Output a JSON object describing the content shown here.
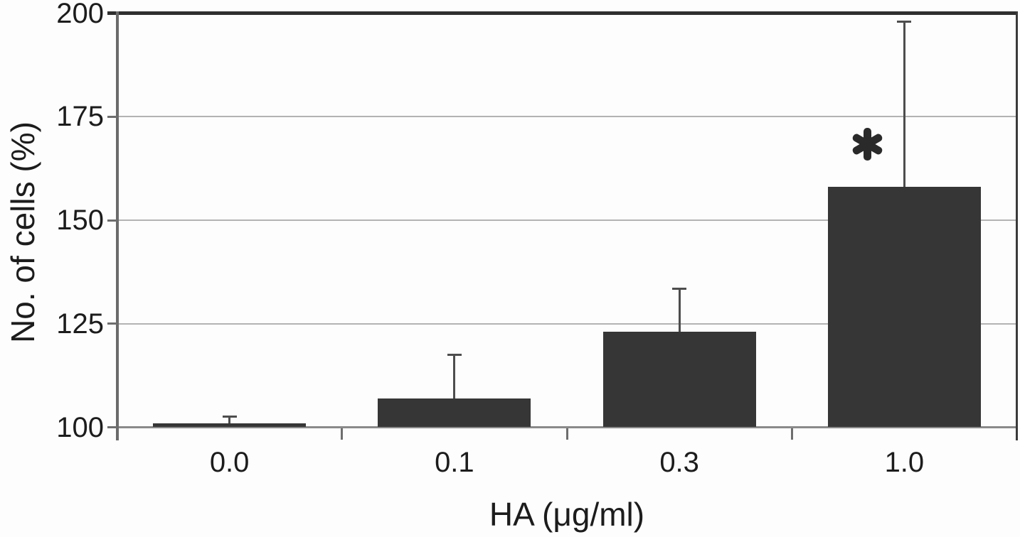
{
  "chart_data": {
    "type": "bar",
    "title": "",
    "xlabel": "HA (μg/ml)",
    "ylabel": "No. of cells (%)",
    "categories": [
      "0.0",
      "0.1",
      "0.3",
      "1.0"
    ],
    "values": [
      101,
      107,
      123,
      158
    ],
    "errors_plus": [
      1.5,
      10.5,
      10.5,
      40
    ],
    "ylim": [
      100,
      200
    ],
    "yticks": [
      100,
      125,
      150,
      175,
      200
    ],
    "grid": "horizontal",
    "legend": "none",
    "annotations": [
      {
        "symbol": "*",
        "category": "1.0",
        "meaning": "statistical-significance",
        "position": "above-bar-left-of-error-bar"
      }
    ]
  },
  "colors": {
    "background": "#fdfdfd",
    "bar": "#363636",
    "error_bar": "#4d4d4d",
    "gridline": "#b3b3b3",
    "baseline": "#8a8a8a",
    "axis_line": "#6b6b6b",
    "frame_top": "#2f2f2f",
    "frame_right": "#3a3a3a",
    "tick": "#6e6e6e",
    "text": "#1c1c1c",
    "asterisk": "#2a2a2a"
  }
}
